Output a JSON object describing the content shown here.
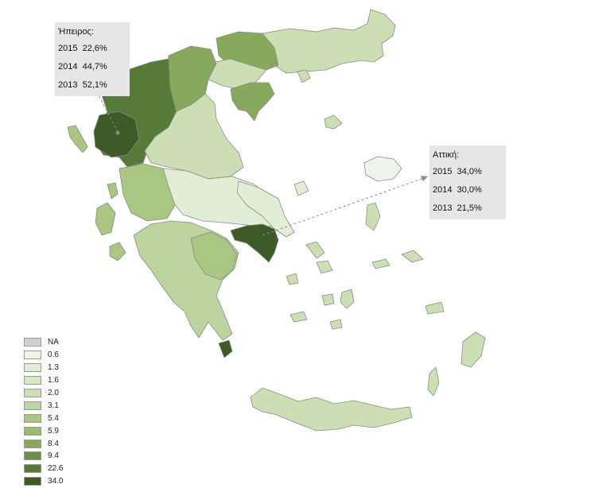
{
  "callouts": {
    "epirus": {
      "title": "Ήπειρος:",
      "rows": [
        {
          "year": "2015",
          "value": "22,6%"
        },
        {
          "year": "2014",
          "value": "44,7%"
        },
        {
          "year": "2013",
          "value": "52,1%"
        }
      ]
    },
    "attica": {
      "title": "Αττική:",
      "rows": [
        {
          "year": "2015",
          "value": "34,0%"
        },
        {
          "year": "2014",
          "value": "30,0%"
        },
        {
          "year": "2013",
          "value": "21,5%"
        }
      ]
    }
  },
  "legend": [
    {
      "label": "NA",
      "color": "#d0d0d0"
    },
    {
      "label": "0.6",
      "color": "#eef5e6"
    },
    {
      "label": "1.3",
      "color": "#e2edd6"
    },
    {
      "label": "1.6",
      "color": "#d7e6c5"
    },
    {
      "label": "2.0",
      "color": "#ccdfb4"
    },
    {
      "label": "3.1",
      "color": "#bcd49e"
    },
    {
      "label": "5.4",
      "color": "#a9c783"
    },
    {
      "label": "5.9",
      "color": "#98bb6e"
    },
    {
      "label": "8.4",
      "color": "#86a95c"
    },
    {
      "label": "9.4",
      "color": "#6c8e47"
    },
    {
      "label": "22.6",
      "color": "#567a37"
    },
    {
      "label": "34.0",
      "color": "#3e5a27"
    }
  ],
  "colors": {
    "leader_line": "#8a8a8a",
    "region_outline": "#8a8a8a",
    "callout_background": "#e6e6e6"
  }
}
